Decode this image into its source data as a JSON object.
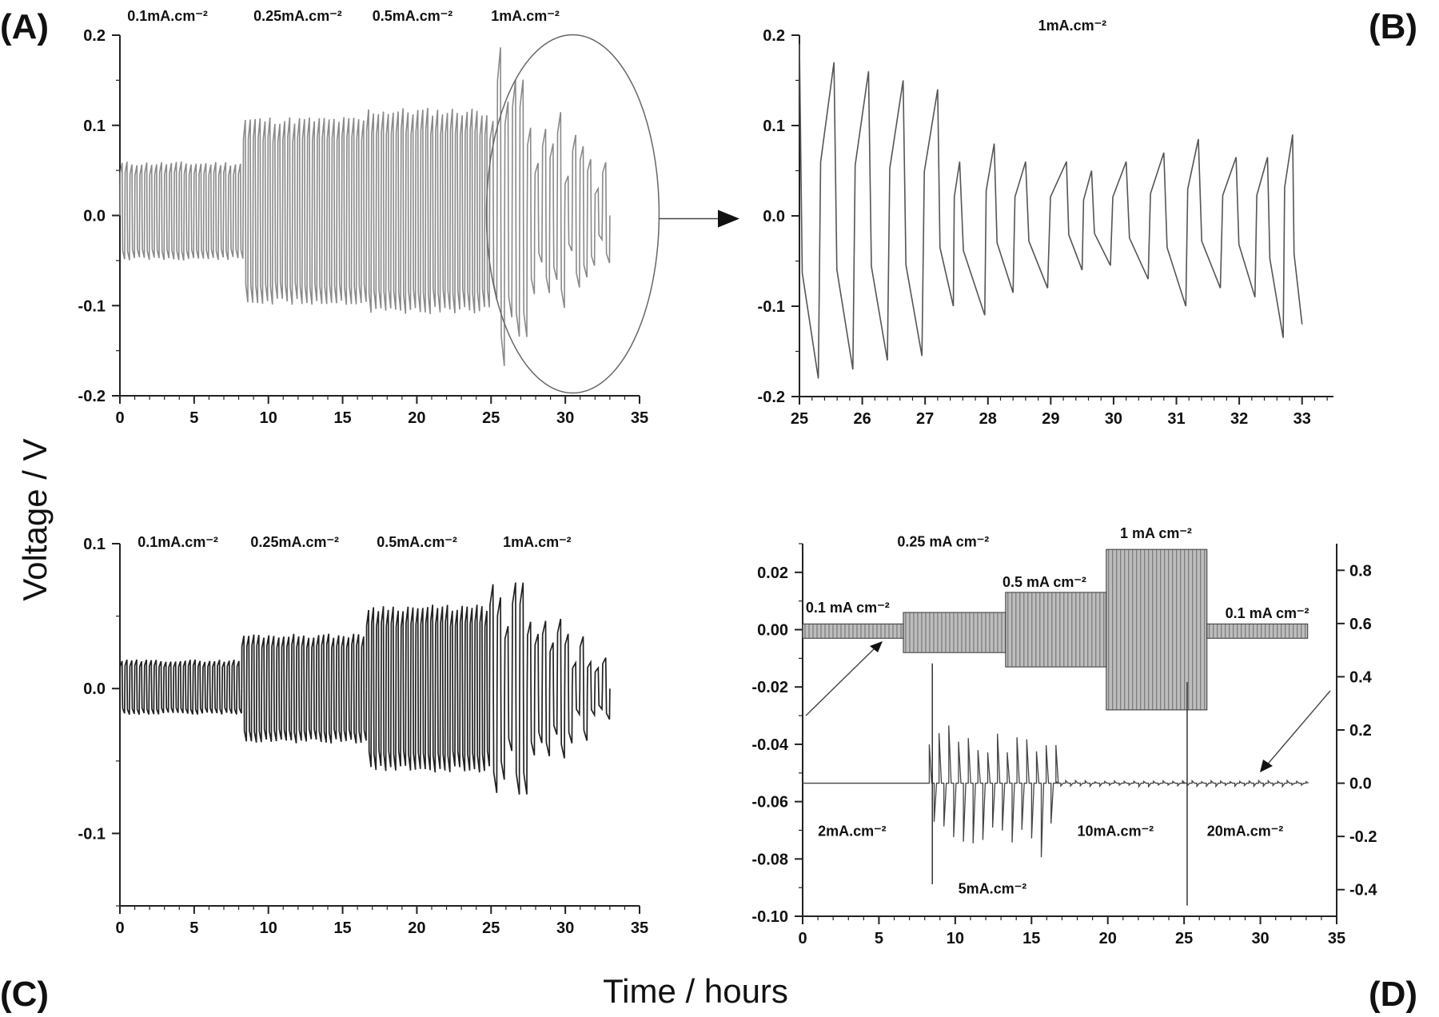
{
  "figure": {
    "ylabel": "Voltage / V",
    "xlabel": "Time / hours"
  },
  "chart_data": [
    {
      "id": "A",
      "panel_label": "(A)",
      "type": "line",
      "xlim": [
        0,
        35
      ],
      "ylim": [
        -0.2,
        0.2
      ],
      "x_ticks": [
        "0",
        "5",
        "10",
        "15",
        "20",
        "25",
        "30",
        "35"
      ],
      "y_ticks": [
        "-0.2",
        "-0.1",
        "0.0",
        "0.1",
        "0.2"
      ],
      "annotations": [
        {
          "text": "0.1mA.cm⁻²",
          "x": 0.5
        },
        {
          "text": "0.25mA.cm⁻²",
          "x": 9
        },
        {
          "text": "0.5mA.cm⁻²",
          "x": 17
        },
        {
          "text": "1mA.cm⁻²",
          "x": 25
        }
      ],
      "segments": [
        {
          "x_start": 0,
          "x_end": 8.3,
          "cycles": 25,
          "ymax": 0.06,
          "ymin": -0.05
        },
        {
          "x_start": 8.3,
          "x_end": 16.6,
          "cycles": 25,
          "ymax": 0.11,
          "ymin": -0.1
        },
        {
          "x_start": 16.6,
          "x_end": 24.9,
          "cycles": 25,
          "ymax": 0.12,
          "ymin": -0.11
        },
        {
          "x_start": 24.9,
          "x_end": 33.0,
          "cycles": 16,
          "ymax": 0.19,
          "ymin": -0.17
        }
      ]
    },
    {
      "id": "B",
      "panel_label": "(B)",
      "type": "line",
      "xlim": [
        25,
        33.5
      ],
      "ylim": [
        -0.2,
        0.2
      ],
      "x_ticks": [
        "25",
        "26",
        "27",
        "28",
        "29",
        "30",
        "31",
        "32",
        "33"
      ],
      "y_ticks": [
        "-0.2",
        "-0.1",
        "0.0",
        "0.1",
        "0.2"
      ],
      "annotations": [
        {
          "text": "1mA.cm⁻²",
          "x": 28.8
        }
      ],
      "peaks": [
        {
          "t": 25.0,
          "y": 0.19
        },
        {
          "t": 25.3,
          "y": -0.18
        },
        {
          "t": 25.55,
          "y": 0.17
        },
        {
          "t": 25.85,
          "y": -0.17
        },
        {
          "t": 26.1,
          "y": 0.16
        },
        {
          "t": 26.4,
          "y": -0.16
        },
        {
          "t": 26.65,
          "y": 0.15
        },
        {
          "t": 26.95,
          "y": -0.155
        },
        {
          "t": 27.2,
          "y": 0.14
        },
        {
          "t": 27.45,
          "y": -0.1
        },
        {
          "t": 27.55,
          "y": 0.06
        },
        {
          "t": 27.95,
          "y": -0.11
        },
        {
          "t": 28.1,
          "y": 0.08
        },
        {
          "t": 28.4,
          "y": -0.085
        },
        {
          "t": 28.6,
          "y": 0.06
        },
        {
          "t": 28.95,
          "y": -0.08
        },
        {
          "t": 29.25,
          "y": 0.06
        },
        {
          "t": 29.5,
          "y": -0.06
        },
        {
          "t": 29.65,
          "y": 0.05
        },
        {
          "t": 29.95,
          "y": -0.055
        },
        {
          "t": 30.2,
          "y": 0.06
        },
        {
          "t": 30.55,
          "y": -0.07
        },
        {
          "t": 30.8,
          "y": 0.07
        },
        {
          "t": 31.15,
          "y": -0.1
        },
        {
          "t": 31.35,
          "y": 0.085
        },
        {
          "t": 31.7,
          "y": -0.08
        },
        {
          "t": 31.95,
          "y": 0.065
        },
        {
          "t": 32.25,
          "y": -0.09
        },
        {
          "t": 32.45,
          "y": 0.065
        },
        {
          "t": 32.7,
          "y": -0.135
        },
        {
          "t": 32.85,
          "y": 0.09
        },
        {
          "t": 33.0,
          "y": -0.12
        }
      ]
    },
    {
      "id": "C",
      "panel_label": "(C)",
      "type": "line",
      "xlim": [
        0,
        35
      ],
      "ylim": [
        -0.15,
        0.1
      ],
      "x_ticks": [
        "0",
        "5",
        "10",
        "15",
        "20",
        "25",
        "30",
        "35"
      ],
      "y_ticks": [
        "-0.1",
        "0.0",
        "0.1"
      ],
      "annotations": [
        {
          "text": "0.1mA.cm⁻²",
          "x": 1.2
        },
        {
          "text": "0.25mA.cm⁻²",
          "x": 8.8
        },
        {
          "text": "0.5mA.cm⁻²",
          "x": 17.3
        },
        {
          "text": "1mA.cm⁻²",
          "x": 25.8
        }
      ],
      "segments": [
        {
          "x_start": 0,
          "x_end": 8.2,
          "cycles": 25,
          "ymax": 0.02,
          "ymin": -0.018
        },
        {
          "x_start": 8.2,
          "x_end": 16.6,
          "cycles": 25,
          "ymax": 0.038,
          "ymin": -0.038
        },
        {
          "x_start": 16.6,
          "x_end": 24.9,
          "cycles": 25,
          "ymax": 0.058,
          "ymin": -0.058
        },
        {
          "x_start": 24.9,
          "x_end": 33.0,
          "cycles": 16,
          "ymax": 0.08,
          "ymin": -0.08
        }
      ]
    },
    {
      "id": "D",
      "panel_label": "(D)",
      "type": "line",
      "xlim": [
        0,
        35
      ],
      "ylim": [
        -0.1,
        0.03
      ],
      "y2lim": [
        -0.5,
        0.9
      ],
      "x_ticks": [
        "0",
        "5",
        "10",
        "15",
        "20",
        "25",
        "30",
        "35"
      ],
      "y_ticks": [
        "-0.10",
        "-0.08",
        "-0.06",
        "-0.04",
        "-0.02",
        "0.00",
        "0.02"
      ],
      "y2_ticks": [
        "-0.4",
        "-0.2",
        "0.0",
        "0.2",
        "0.4",
        "0.6",
        "0.8"
      ],
      "annotations_top": [
        {
          "text": "0.1 mA cm⁻²",
          "x": 0.2,
          "y": 0.006
        },
        {
          "text": "0.25 mA cm⁻²",
          "x": 6.2,
          "y": 0.029
        },
        {
          "text": "0.5 mA cm⁻²",
          "x": 13.1,
          "y": 0.015
        },
        {
          "text": "1 mA cm⁻²",
          "x": 20.8,
          "y": 0.032
        },
        {
          "text": "0.1 mA cm⁻²",
          "x": 27.7,
          "y": 0.004
        }
      ],
      "annotations_bottom": [
        {
          "text": "2mA.cm⁻²",
          "x": 1.0,
          "y": -0.072
        },
        {
          "text": "5mA.cm⁻²",
          "x": 10.2,
          "y": -0.092
        },
        {
          "text": "10mA.cm⁻²",
          "x": 18.0,
          "y": -0.072
        },
        {
          "text": "20mA.cm⁻²",
          "x": 26.5,
          "y": -0.072
        }
      ],
      "blocks_left_axis": [
        {
          "x_start": 0,
          "x_end": 6.6,
          "ymax": 0.002,
          "ymin": -0.003
        },
        {
          "x_start": 6.6,
          "x_end": 13.3,
          "ymax": 0.006,
          "ymin": -0.008
        },
        {
          "x_start": 13.3,
          "x_end": 19.9,
          "ymax": 0.013,
          "ymin": -0.013
        },
        {
          "x_start": 19.9,
          "x_end": 26.5,
          "ymax": 0.028,
          "ymin": -0.028
        },
        {
          "x_start": 26.5,
          "x_end": 33.1,
          "ymax": 0.002,
          "ymin": -0.003
        }
      ],
      "series_right_axis": [
        {
          "name": "2mA.cm⁻²",
          "x_start": 0,
          "x_end": 8.3,
          "amp": 0.0
        },
        {
          "name": "5mA.cm⁻²",
          "x_start": 8.3,
          "x_end": 16.6,
          "amp": 0.22
        },
        {
          "name": "10mA.cm⁻²",
          "x_start": 16.6,
          "x_end": 24.9,
          "amp": 0.01
        },
        {
          "name": "20mA.cm⁻²",
          "x_start": 24.9,
          "x_end": 33.0,
          "amp": 0.01
        }
      ]
    }
  ]
}
